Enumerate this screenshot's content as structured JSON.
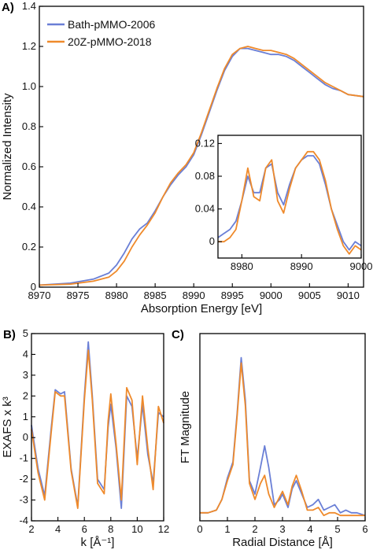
{
  "colors": {
    "blue": "#6a7fd6",
    "orange": "#ef8a2b"
  },
  "chart_data": [
    {
      "id": "A",
      "panel_label": "A)",
      "type": "line",
      "xlabel": "Absorption Energy [eV]",
      "ylabel": "Normalized Intensity",
      "xlim": [
        8970,
        9012
      ],
      "ylim": [
        0,
        1.4
      ],
      "xticks": [
        "8970",
        "8975",
        "8980",
        "8985",
        "8990",
        "8995",
        "9000",
        "9005",
        "9010"
      ],
      "yticks": [
        "0",
        "0.2",
        "0.4",
        "0.6",
        "0.8",
        "1.0",
        "1.2",
        "1.4"
      ],
      "legend": {
        "position": "top-left",
        "entries": [
          "Bath-pMMO-2006",
          "20Z-pMMO-2018"
        ]
      },
      "series": [
        {
          "name": "Bath-pMMO-2006",
          "color": "blue",
          "x": [
            8970,
            8974,
            8977,
            8979,
            8980,
            8981,
            8982,
            8983,
            8984,
            8985,
            8986,
            8987,
            8988,
            8989,
            8990,
            8991,
            8992,
            8993,
            8994,
            8995,
            8996,
            8997,
            8998,
            8999,
            9000,
            9001,
            9002,
            9003,
            9004,
            9005,
            9006,
            9007,
            9008,
            9009,
            9010,
            9012
          ],
          "y": [
            0.01,
            0.02,
            0.04,
            0.07,
            0.11,
            0.17,
            0.24,
            0.29,
            0.32,
            0.38,
            0.45,
            0.51,
            0.56,
            0.6,
            0.66,
            0.76,
            0.87,
            0.98,
            1.08,
            1.15,
            1.19,
            1.19,
            1.18,
            1.17,
            1.16,
            1.16,
            1.15,
            1.13,
            1.1,
            1.07,
            1.04,
            1.01,
            0.99,
            0.98,
            0.96,
            0.95
          ]
        },
        {
          "name": "20Z-pMMO-2018",
          "color": "orange",
          "x": [
            8970,
            8974,
            8977,
            8979,
            8980,
            8981,
            8982,
            8983,
            8984,
            8985,
            8986,
            8987,
            8988,
            8989,
            8990,
            8991,
            8992,
            8993,
            8994,
            8995,
            8996,
            8997,
            8998,
            8999,
            9000,
            9001,
            9002,
            9003,
            9004,
            9005,
            9006,
            9007,
            9008,
            9009,
            9010,
            9012
          ],
          "y": [
            0.01,
            0.015,
            0.03,
            0.05,
            0.08,
            0.13,
            0.2,
            0.26,
            0.31,
            0.37,
            0.45,
            0.52,
            0.57,
            0.61,
            0.67,
            0.77,
            0.88,
            0.99,
            1.09,
            1.16,
            1.19,
            1.2,
            1.19,
            1.18,
            1.18,
            1.17,
            1.16,
            1.14,
            1.11,
            1.08,
            1.05,
            1.02,
            1.0,
            0.98,
            0.96,
            0.95
          ]
        }
      ]
    },
    {
      "id": "A_inset",
      "type": "line",
      "xlim": [
        8976,
        9000
      ],
      "ylim": [
        -0.02,
        0.13
      ],
      "xticks": [
        "8980",
        "8990",
        "9000"
      ],
      "yticks": [
        "0",
        "0.04",
        "0.08",
        "0.12"
      ],
      "series": [
        {
          "name": "Bath-pMMO-2006",
          "color": "blue",
          "x": [
            8976,
            8977,
            8978,
            8979,
            8980,
            8981,
            8982,
            8983,
            8984,
            8985,
            8986,
            8987,
            8988,
            8989,
            8990,
            8991,
            8992,
            8993,
            8994,
            8995,
            8996,
            8997,
            8998,
            8999,
            9000
          ],
          "y": [
            0.005,
            0.01,
            0.015,
            0.025,
            0.05,
            0.08,
            0.06,
            0.06,
            0.09,
            0.095,
            0.06,
            0.045,
            0.07,
            0.09,
            0.1,
            0.105,
            0.105,
            0.095,
            0.07,
            0.04,
            0.02,
            0.0,
            -0.01,
            0.0,
            -0.005
          ]
        },
        {
          "name": "20Z-pMMO-2018",
          "color": "orange",
          "x": [
            8976,
            8977,
            8978,
            8979,
            8980,
            8981,
            8982,
            8983,
            8984,
            8985,
            8986,
            8987,
            8988,
            8989,
            8990,
            8991,
            8992,
            8993,
            8994,
            8995,
            8996,
            8997,
            8998,
            8999,
            9000
          ],
          "y": [
            0.0,
            0.0,
            0.005,
            0.015,
            0.05,
            0.09,
            0.055,
            0.05,
            0.09,
            0.1,
            0.05,
            0.035,
            0.065,
            0.09,
            0.1,
            0.11,
            0.11,
            0.1,
            0.075,
            0.04,
            0.015,
            -0.005,
            -0.015,
            -0.005,
            -0.01
          ]
        }
      ]
    },
    {
      "id": "B",
      "panel_label": "B)",
      "type": "line",
      "xlabel": "k [Å⁻¹]",
      "ylabel": "EXAFS x k³",
      "xlim": [
        2,
        12
      ],
      "ylim": [
        -4,
        5
      ],
      "xticks": [
        "2",
        "4",
        "6",
        "8",
        "10",
        "12"
      ],
      "yticks": [
        "-4",
        "-3",
        "-2",
        "-1",
        "0",
        "1",
        "2",
        "3",
        "4",
        "5"
      ],
      "series": [
        {
          "name": "Bath-pMMO-2006",
          "color": "blue",
          "x": [
            2,
            2.5,
            3,
            3.5,
            3.8,
            4.2,
            4.5,
            5,
            5.5,
            6,
            6.3,
            6.6,
            7,
            7.5,
            7.8,
            8,
            8.4,
            8.8,
            9.2,
            9.6,
            10,
            10.4,
            10.8,
            11.2,
            11.6,
            12
          ],
          "y": [
            0.6,
            -1.5,
            -2.8,
            0.5,
            2.3,
            2.1,
            2.2,
            -1.5,
            -3.3,
            2.0,
            4.6,
            2.0,
            -2.0,
            -2.5,
            0.5,
            1.6,
            -0.5,
            -3.4,
            2.0,
            1.5,
            -1.0,
            1.6,
            -0.8,
            -2.2,
            1.2,
            1.0
          ]
        },
        {
          "name": "20Z-pMMO-2018",
          "color": "orange",
          "x": [
            2,
            2.5,
            3,
            3.5,
            3.8,
            4.2,
            4.5,
            5,
            5.5,
            6,
            6.3,
            6.6,
            7,
            7.5,
            7.8,
            8,
            8.4,
            8.8,
            9.2,
            9.6,
            10,
            10.4,
            10.8,
            11.2,
            11.6,
            12
          ],
          "y": [
            0.4,
            -1.7,
            -3.0,
            0.3,
            2.2,
            2.0,
            2.0,
            -1.6,
            -3.4,
            1.8,
            4.2,
            1.8,
            -2.2,
            -2.7,
            0.8,
            2.1,
            -0.3,
            -3.0,
            2.4,
            1.8,
            -1.3,
            2.0,
            -0.5,
            -2.5,
            1.5,
            0.7
          ]
        }
      ]
    },
    {
      "id": "C",
      "panel_label": "C)",
      "type": "line",
      "xlabel": "Radial Distance [Å]",
      "ylabel": "FT Magnitude",
      "xlim": [
        0,
        6
      ],
      "ylim": [
        0,
        7
      ],
      "xticks": [
        "0",
        "1",
        "2",
        "3",
        "4",
        "5",
        "6"
      ],
      "yticks": [],
      "series": [
        {
          "name": "Bath-pMMO-2006",
          "color": "blue",
          "x": [
            0,
            0.3,
            0.6,
            0.8,
            1.0,
            1.2,
            1.35,
            1.5,
            1.65,
            1.8,
            2.0,
            2.2,
            2.35,
            2.5,
            2.7,
            2.9,
            3.0,
            3.2,
            3.35,
            3.5,
            3.7,
            3.9,
            4.1,
            4.3,
            4.5,
            4.7,
            4.9,
            5.1,
            5.3,
            5.5,
            5.7,
            6.0
          ],
          "y": [
            0.3,
            0.3,
            0.4,
            0.8,
            1.6,
            2.2,
            4.0,
            6.1,
            4.5,
            1.5,
            1.0,
            2.0,
            2.8,
            2.0,
            0.6,
            0.8,
            1.0,
            0.5,
            1.2,
            1.5,
            1.0,
            0.5,
            0.6,
            0.8,
            0.4,
            0.5,
            0.6,
            0.3,
            0.4,
            0.3,
            0.3,
            0.2
          ]
        },
        {
          "name": "20Z-pMMO-2018",
          "color": "orange",
          "x": [
            0,
            0.3,
            0.6,
            0.8,
            1.0,
            1.2,
            1.35,
            1.5,
            1.65,
            1.8,
            2.0,
            2.2,
            2.35,
            2.5,
            2.7,
            2.9,
            3.0,
            3.2,
            3.35,
            3.5,
            3.7,
            3.9,
            4.1,
            4.3,
            4.5,
            4.7,
            4.9,
            5.1,
            5.3,
            5.5,
            5.7,
            6.0
          ],
          "y": [
            0.3,
            0.3,
            0.4,
            0.8,
            1.5,
            2.1,
            3.9,
            5.9,
            4.3,
            1.4,
            0.8,
            1.4,
            1.7,
            1.0,
            0.5,
            0.9,
            1.1,
            0.6,
            1.3,
            1.7,
            1.1,
            0.4,
            0.4,
            0.5,
            0.2,
            0.3,
            0.3,
            0.2,
            0.2,
            0.2,
            0.2,
            0.2
          ]
        }
      ]
    }
  ]
}
